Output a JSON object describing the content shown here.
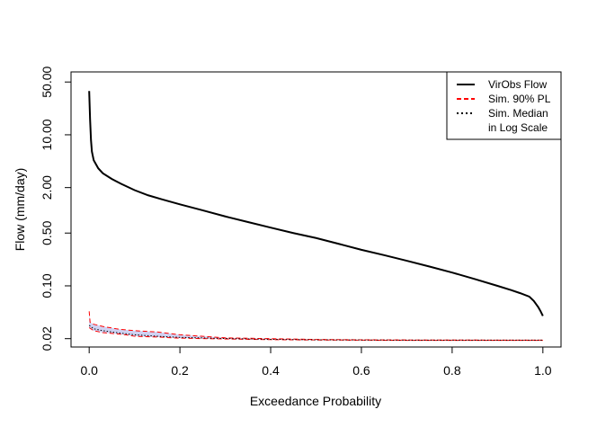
{
  "chart_data": {
    "type": "line",
    "title": "",
    "xlabel": "Exceedance Probability",
    "ylabel": "Flow (mm/day)",
    "xlim": [
      -0.04,
      1.04
    ],
    "ylim": [
      0.0155,
      68
    ],
    "y_scale": "log",
    "grid": false,
    "legend_position": "top-right",
    "x_ticks": [
      0.0,
      0.2,
      0.4,
      0.6,
      0.8,
      1.0
    ],
    "x_tick_labels": [
      "0.0",
      "0.2",
      "0.4",
      "0.6",
      "0.8",
      "1.0"
    ],
    "y_ticks": [
      0.02,
      0.1,
      0.5,
      2.0,
      10.0,
      50.0
    ],
    "y_tick_labels": [
      "0.02",
      "0.10",
      "0.50",
      "2.00",
      "10.00",
      "50.00"
    ],
    "legend": [
      {
        "label": "VirObs Flow",
        "color": "#000000",
        "style": "solid"
      },
      {
        "label": "Sim. 90% PL",
        "color": "#ff0000",
        "style": "dashed"
      },
      {
        "label": "Sim. Median",
        "color": "#000000",
        "style": "dotted"
      },
      {
        "label": "in Log Scale",
        "color": "",
        "style": "none"
      }
    ],
    "series": [
      {
        "name": "VirObs Flow",
        "color": "#000000",
        "x": [
          0.0,
          0.002,
          0.004,
          0.006,
          0.01,
          0.02,
          0.03,
          0.05,
          0.07,
          0.1,
          0.13,
          0.16,
          0.2,
          0.25,
          0.3,
          0.35,
          0.4,
          0.45,
          0.5,
          0.55,
          0.6,
          0.65,
          0.7,
          0.75,
          0.8,
          0.85,
          0.9,
          0.93,
          0.95,
          0.97,
          0.98,
          0.99,
          0.995,
          1.0
        ],
        "y": [
          38.0,
          16.0,
          8.5,
          6.0,
          4.6,
          3.6,
          3.1,
          2.6,
          2.25,
          1.85,
          1.58,
          1.4,
          1.2,
          1.0,
          0.83,
          0.7,
          0.59,
          0.5,
          0.43,
          0.36,
          0.3,
          0.255,
          0.215,
          0.18,
          0.15,
          0.123,
          0.1,
          0.088,
          0.08,
          0.072,
          0.063,
          0.052,
          0.046,
          0.04
        ]
      },
      {
        "name": "Sim. 90% PL upper",
        "color": "#ff0000",
        "x": [
          0.0,
          0.002,
          0.005,
          0.01,
          0.03,
          0.06,
          0.07,
          0.1,
          0.15,
          0.2,
          0.3,
          0.4,
          0.5,
          0.6,
          0.7,
          0.8,
          0.9,
          1.0
        ],
        "y": [
          0.046,
          0.033,
          0.032,
          0.031,
          0.029,
          0.027,
          0.0265,
          0.0255,
          0.0245,
          0.0225,
          0.0205,
          0.02,
          0.0195,
          0.0193,
          0.0192,
          0.0192,
          0.0191,
          0.0191
        ]
      },
      {
        "name": "Sim. 90% PL lower",
        "color": "#ff0000",
        "x": [
          0.0,
          0.01,
          0.03,
          0.05,
          0.08,
          0.1,
          0.15,
          0.2,
          0.3,
          0.4,
          0.5,
          0.6,
          0.7,
          0.8,
          0.9,
          1.0
        ],
        "y": [
          0.028,
          0.0255,
          0.024,
          0.0235,
          0.0225,
          0.0215,
          0.021,
          0.0203,
          0.0198,
          0.0194,
          0.0192,
          0.0191,
          0.019,
          0.019,
          0.019,
          0.019
        ]
      },
      {
        "name": "Sim. Median",
        "color": "#000000",
        "x": [
          0.0,
          0.01,
          0.03,
          0.05,
          0.08,
          0.1,
          0.15,
          0.2,
          0.3,
          0.4,
          0.5,
          0.6,
          0.7,
          0.8,
          0.9,
          1.0
        ],
        "y": [
          0.03,
          0.027,
          0.0255,
          0.0245,
          0.0232,
          0.0225,
          0.0215,
          0.0208,
          0.0201,
          0.0196,
          0.0193,
          0.0192,
          0.0191,
          0.0191,
          0.0191,
          0.0191
        ]
      }
    ]
  }
}
